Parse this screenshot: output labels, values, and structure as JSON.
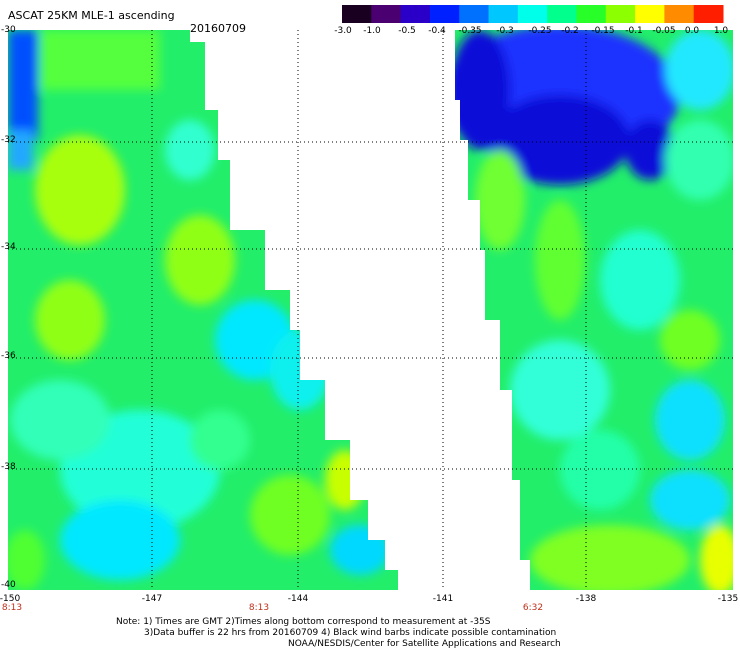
{
  "header": {
    "title": "ASCAT 25KM MLE-1 ascending",
    "date": "20160709"
  },
  "colorbar": {
    "labels": [
      "-3.0",
      "-1.0",
      "-0.5",
      "-0.4",
      "-0.35",
      "-0.3",
      "-0.25",
      "-0.2",
      "-0.15",
      "-0.1",
      "-0.05",
      "0.0",
      "1.0"
    ],
    "colors": [
      "#1a0020",
      "#4b0072",
      "#2a00c8",
      "#0020ff",
      "#0070ff",
      "#00c8ff",
      "#00ffea",
      "#00ff8c",
      "#28ff28",
      "#8cff00",
      "#ffff00",
      "#ff8c00",
      "#ff1e00"
    ]
  },
  "map": {
    "lat_labels": [
      "-30",
      "-32",
      "-34",
      "-36",
      "-38",
      "-40"
    ],
    "lon_labels": [
      "-150",
      "-147",
      "-144",
      "-141",
      "-138",
      "-135"
    ],
    "time_labels": [
      "8:13",
      "8:13",
      "6:32"
    ],
    "time_color": "#c0301a"
  },
  "footer": {
    "note_line1": "Note: 1) Times are GMT 2)Times along bottom correspond to measurement at -35S",
    "note_line2": "3)Data buffer is 22 hrs from 20160709 4) Black wind barbs indicate possible contamination",
    "note_line3": "NOAA/NESDIS/Center for Satellite Applications and Research"
  }
}
